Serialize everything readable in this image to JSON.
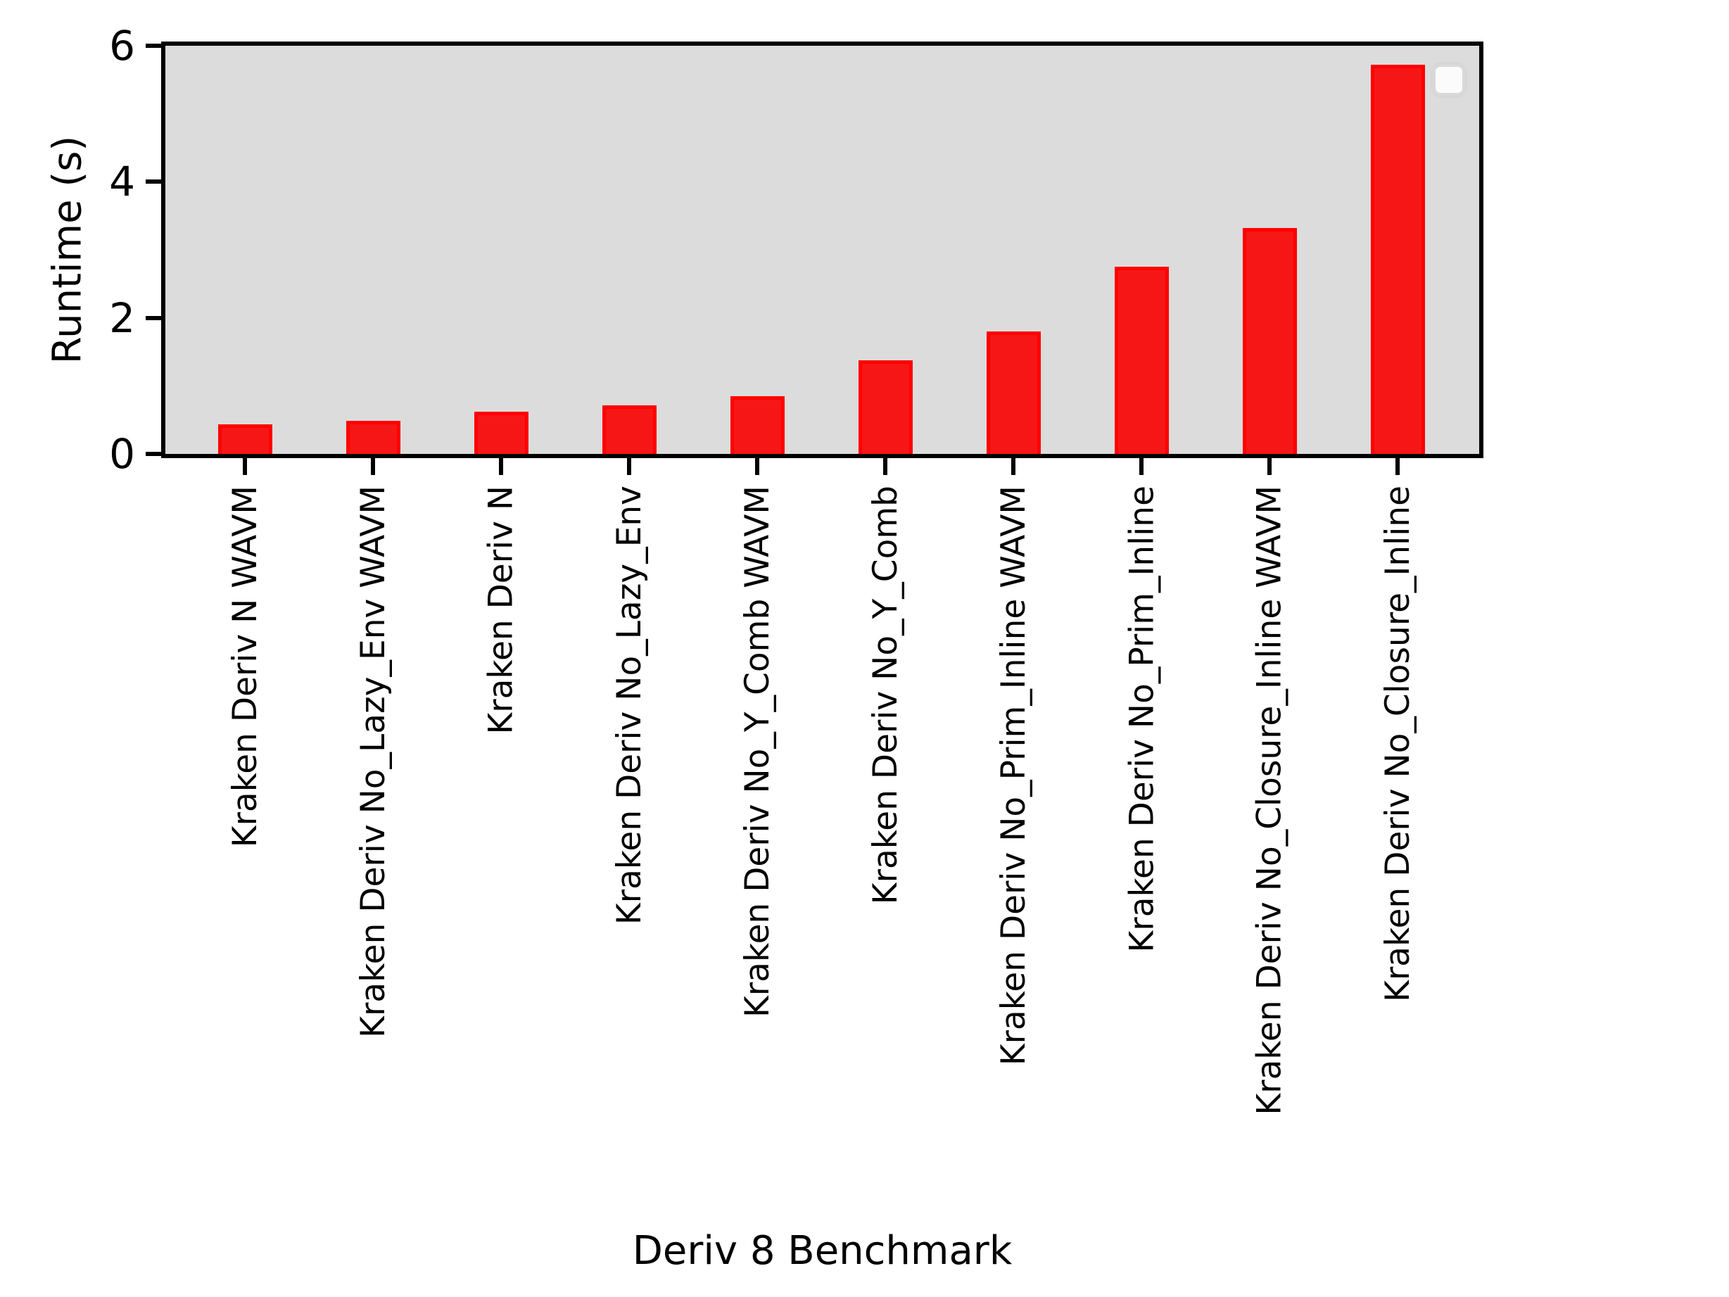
{
  "figure": {
    "background": "#ffffff",
    "plot_background": "#dcdcdc",
    "spine_color": "#000000",
    "legend": {
      "present": true,
      "entries": [],
      "position": "upper-right",
      "background": "#fbfbfb",
      "border_color": "#d9d9d9"
    }
  },
  "chart_data": {
    "type": "bar",
    "title": "",
    "xlabel": "Deriv 8 Benchmark",
    "ylabel": "Runtime (s)",
    "categories": [
      "Kraken Deriv N WAVM",
      "Kraken Deriv No_Lazy_Env WAVM",
      "Kraken Deriv N",
      "Kraken Deriv No_Lazy_Env",
      "Kraken Deriv No_Y_Comb WAVM",
      "Kraken Deriv No_Y_Comb",
      "Kraken Deriv No_Prim_Inline WAVM",
      "Kraken Deriv No_Prim_Inline",
      "Kraken Deriv No_Closure_Inline WAVM",
      "Kraken Deriv No_Closure_Inline"
    ],
    "values": [
      0.43,
      0.49,
      0.62,
      0.71,
      0.85,
      1.38,
      1.8,
      2.75,
      3.32,
      5.72
    ],
    "yticks": [
      0,
      2,
      4,
      6
    ],
    "ylim": [
      0,
      6
    ],
    "xtick_rotation": 90,
    "grid": false,
    "bar_color": "#f61616",
    "bar_edge_color": "#ff0000",
    "legend_position": "upper-right"
  }
}
